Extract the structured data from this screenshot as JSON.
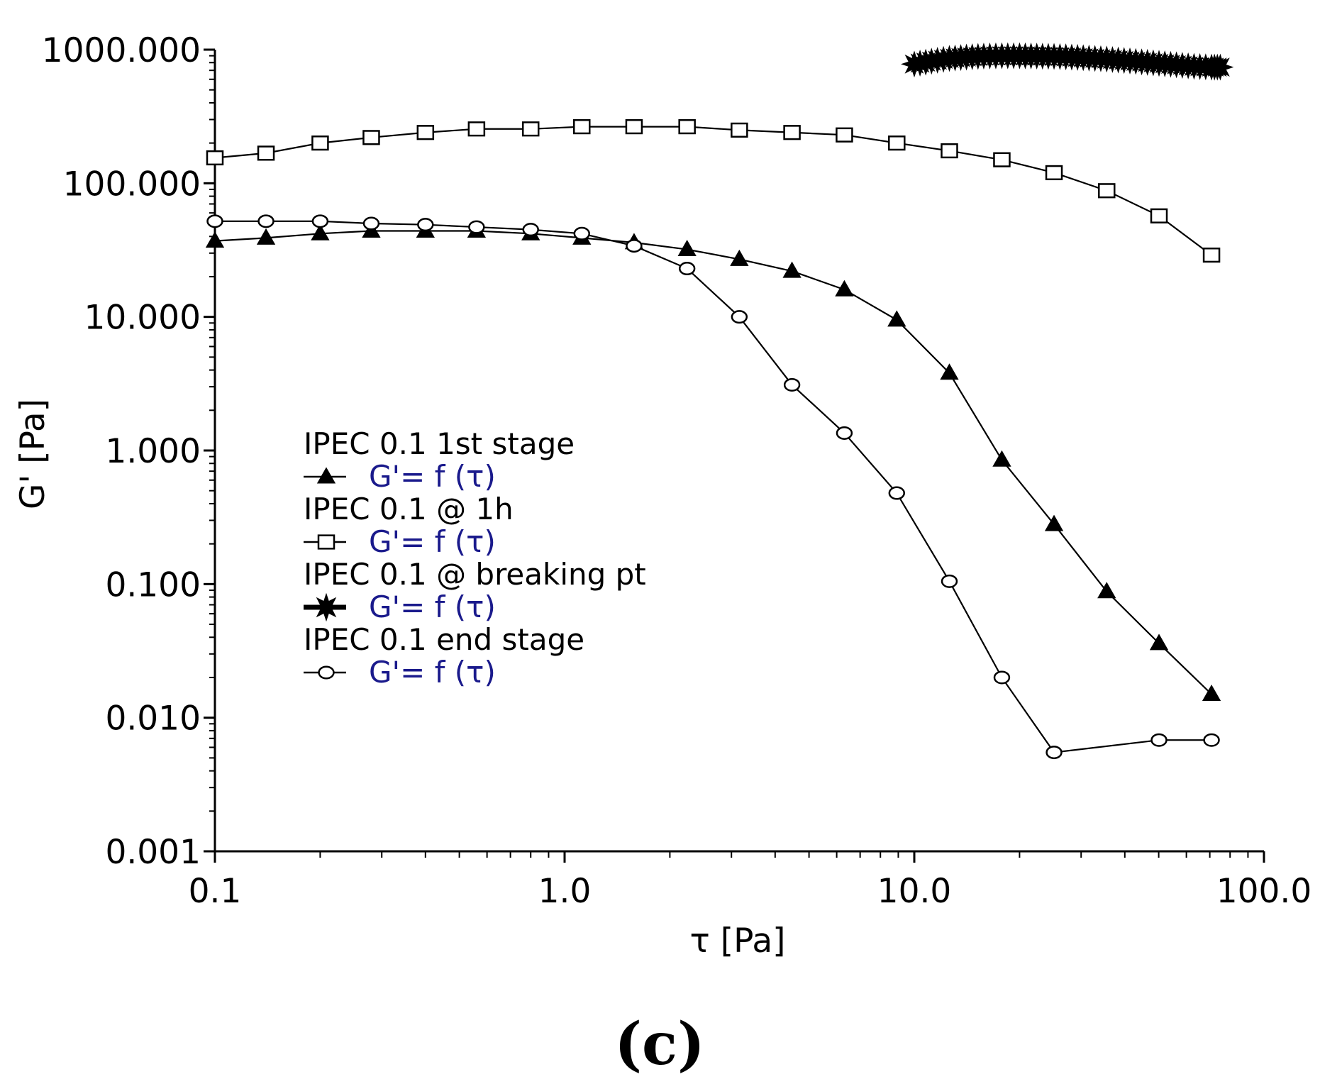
{
  "chart_data": {
    "type": "line",
    "title": "",
    "xlabel": "τ  [Pa]",
    "ylabel": "G'  [Pa]",
    "xscale": "log",
    "yscale": "log",
    "xlim": [
      0.1,
      100.0
    ],
    "ylim": [
      0.001,
      1000.0
    ],
    "x_ticks": [
      "0.1",
      "1.0",
      "10.0",
      "100.0"
    ],
    "y_ticks": [
      "0.001",
      "0.010",
      "0.100",
      "1.000",
      "10.000",
      "100.000",
      "1000.000"
    ],
    "legend_placement": "center-left",
    "panel_label": "(c)",
    "series": [
      {
        "name": "IPEC 0.1 1st stage",
        "formula": "G'= f (τ)",
        "marker": "filled-triangle",
        "x": [
          0.1,
          0.14,
          0.2,
          0.28,
          0.4,
          0.56,
          0.8,
          1.12,
          1.58,
          2.24,
          3.16,
          4.47,
          6.31,
          8.91,
          12.6,
          17.8,
          25.1,
          35.5,
          50.1,
          70.8
        ],
        "values": [
          37,
          39,
          42,
          44,
          44,
          44,
          42,
          39,
          36,
          32,
          27,
          22,
          16,
          9.5,
          3.8,
          0.85,
          0.28,
          0.088,
          0.036,
          0.015
        ]
      },
      {
        "name": "IPEC 0.1 @ 1h",
        "formula": "G'= f (τ)",
        "marker": "open-square",
        "x": [
          0.1,
          0.14,
          0.2,
          0.28,
          0.4,
          0.56,
          0.8,
          1.12,
          1.58,
          2.24,
          3.16,
          4.47,
          6.31,
          8.91,
          12.6,
          17.8,
          25.1,
          35.5,
          50.1,
          70.8
        ],
        "values": [
          155,
          168,
          200,
          220,
          240,
          255,
          255,
          265,
          265,
          265,
          250,
          240,
          230,
          200,
          175,
          150,
          120,
          88,
          57,
          29
        ]
      },
      {
        "name": "IPEC 0.1 @ breaking pt",
        "formula": "G'= f (τ)",
        "marker": "filled-star",
        "x": [
          10.0,
          11.2,
          12.6,
          14.1,
          15.8,
          17.8,
          20.0,
          22.4,
          25.1,
          28.2,
          31.6,
          35.5,
          39.8,
          44.7,
          50.1,
          56.2,
          63.1,
          70.8,
          75.0
        ],
        "values": [
          780,
          820,
          860,
          880,
          895,
          900,
          900,
          895,
          890,
          880,
          865,
          850,
          830,
          810,
          790,
          770,
          750,
          740,
          740
        ]
      },
      {
        "name": "IPEC 0.1 end stage",
        "formula": "G'= f (τ)",
        "marker": "open-diamond",
        "x": [
          0.1,
          0.14,
          0.2,
          0.28,
          0.4,
          0.56,
          0.8,
          1.12,
          1.58,
          2.24,
          3.16,
          4.47,
          6.31,
          8.91,
          12.6,
          17.8,
          25.1,
          50.1,
          70.8
        ],
        "values": [
          52,
          52,
          52,
          50,
          49,
          47,
          45,
          42,
          34,
          23,
          10,
          3.1,
          1.35,
          0.48,
          0.105,
          0.02,
          0.0055,
          0.0068,
          0.0068
        ]
      }
    ]
  }
}
